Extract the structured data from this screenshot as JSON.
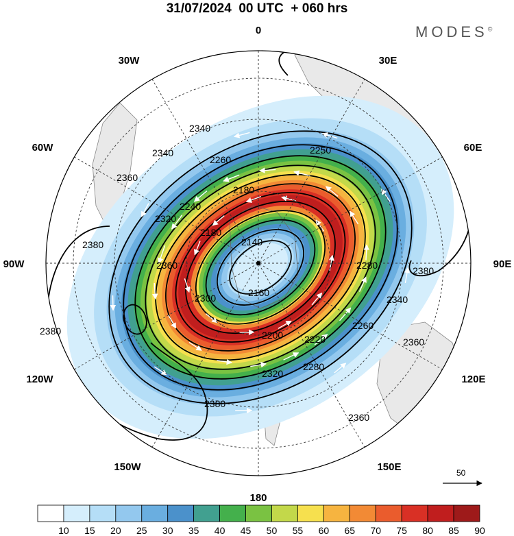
{
  "title": "31/07/2024  00 UTC  + 060 hrs",
  "logo": "MODES",
  "logo_mark": "©",
  "longitude_labels": [
    {
      "text": "0",
      "lon": 0
    },
    {
      "text": "30E",
      "lon": 30
    },
    {
      "text": "60E",
      "lon": 60
    },
    {
      "text": "90E",
      "lon": 90
    },
    {
      "text": "120E",
      "lon": 120
    },
    {
      "text": "150E",
      "lon": 150
    },
    {
      "text": "180",
      "lon": 180
    },
    {
      "text": "150W",
      "lon": -150
    },
    {
      "text": "120W",
      "lon": -120
    },
    {
      "text": "90W",
      "lon": -90
    },
    {
      "text": "60W",
      "lon": -60
    },
    {
      "text": "30W",
      "lon": -30
    }
  ],
  "contour_labels": [
    "2140",
    "2160",
    "2180",
    "2180",
    "2200",
    "2220",
    "2240",
    "2250",
    "2260",
    "2260",
    "2280",
    "2280",
    "2300",
    "2320",
    "2320",
    "2340",
    "2340",
    "2340",
    "2360",
    "2360",
    "2360",
    "2360",
    "2380",
    "2380",
    "2380",
    "2380"
  ],
  "reference_vector": {
    "label": "50"
  },
  "colorbar": {
    "labels": [
      "10",
      "15",
      "20",
      "25",
      "30",
      "35",
      "40",
      "45",
      "50",
      "55",
      "60",
      "65",
      "70",
      "75",
      "80",
      "85",
      "90"
    ],
    "colors": [
      "#ffffff",
      "#d5eefc",
      "#b5def7",
      "#93c8ee",
      "#6aaee0",
      "#4b91cb",
      "#41a090",
      "#44b04c",
      "#7ac242",
      "#c3d84a",
      "#f6e04e",
      "#f6b440",
      "#f28a35",
      "#ea5c2d",
      "#d93025",
      "#c01e1e",
      "#9e1a1a"
    ]
  },
  "colors": {
    "land": "#e8e8e8",
    "contour": "#000000",
    "vector": "#ffffff"
  }
}
